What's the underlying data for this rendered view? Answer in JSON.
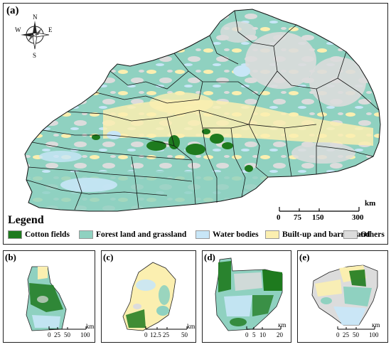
{
  "panels": {
    "a": {
      "label": "(a)"
    },
    "b": {
      "label": "(b)",
      "scalebar": {
        "ticks": [
          "0",
          "25",
          "50",
          "100"
        ],
        "unit": "km"
      }
    },
    "c": {
      "label": "(c)",
      "scalebar": {
        "ticks": [
          "0",
          "12.5",
          "25",
          "50"
        ],
        "unit": "km"
      }
    },
    "d": {
      "label": "(d)",
      "scalebar": {
        "ticks": [
          "0",
          "5",
          "10",
          "20"
        ],
        "unit": "km"
      }
    },
    "e": {
      "label": "(e)",
      "scalebar": {
        "ticks": [
          "0",
          "25",
          "50",
          "100"
        ],
        "unit": "km"
      }
    }
  },
  "compass": {
    "n": "N",
    "s": "S",
    "e": "E",
    "w": "W"
  },
  "main_scalebar": {
    "ticks": [
      "0",
      "75",
      "150",
      "300"
    ],
    "unit": "km"
  },
  "legend": {
    "title": "Legend",
    "items": [
      {
        "label": "Cotton fields",
        "color": "#1e7a1e"
      },
      {
        "label": "Forest land and grassland",
        "color": "#8fd1c0"
      },
      {
        "label": "Water bodies",
        "color": "#c8e6f7"
      },
      {
        "label": "Built-up and barren land",
        "color": "#fbefb0"
      },
      {
        "label": "Others",
        "color": "#dcdcdc"
      }
    ]
  }
}
